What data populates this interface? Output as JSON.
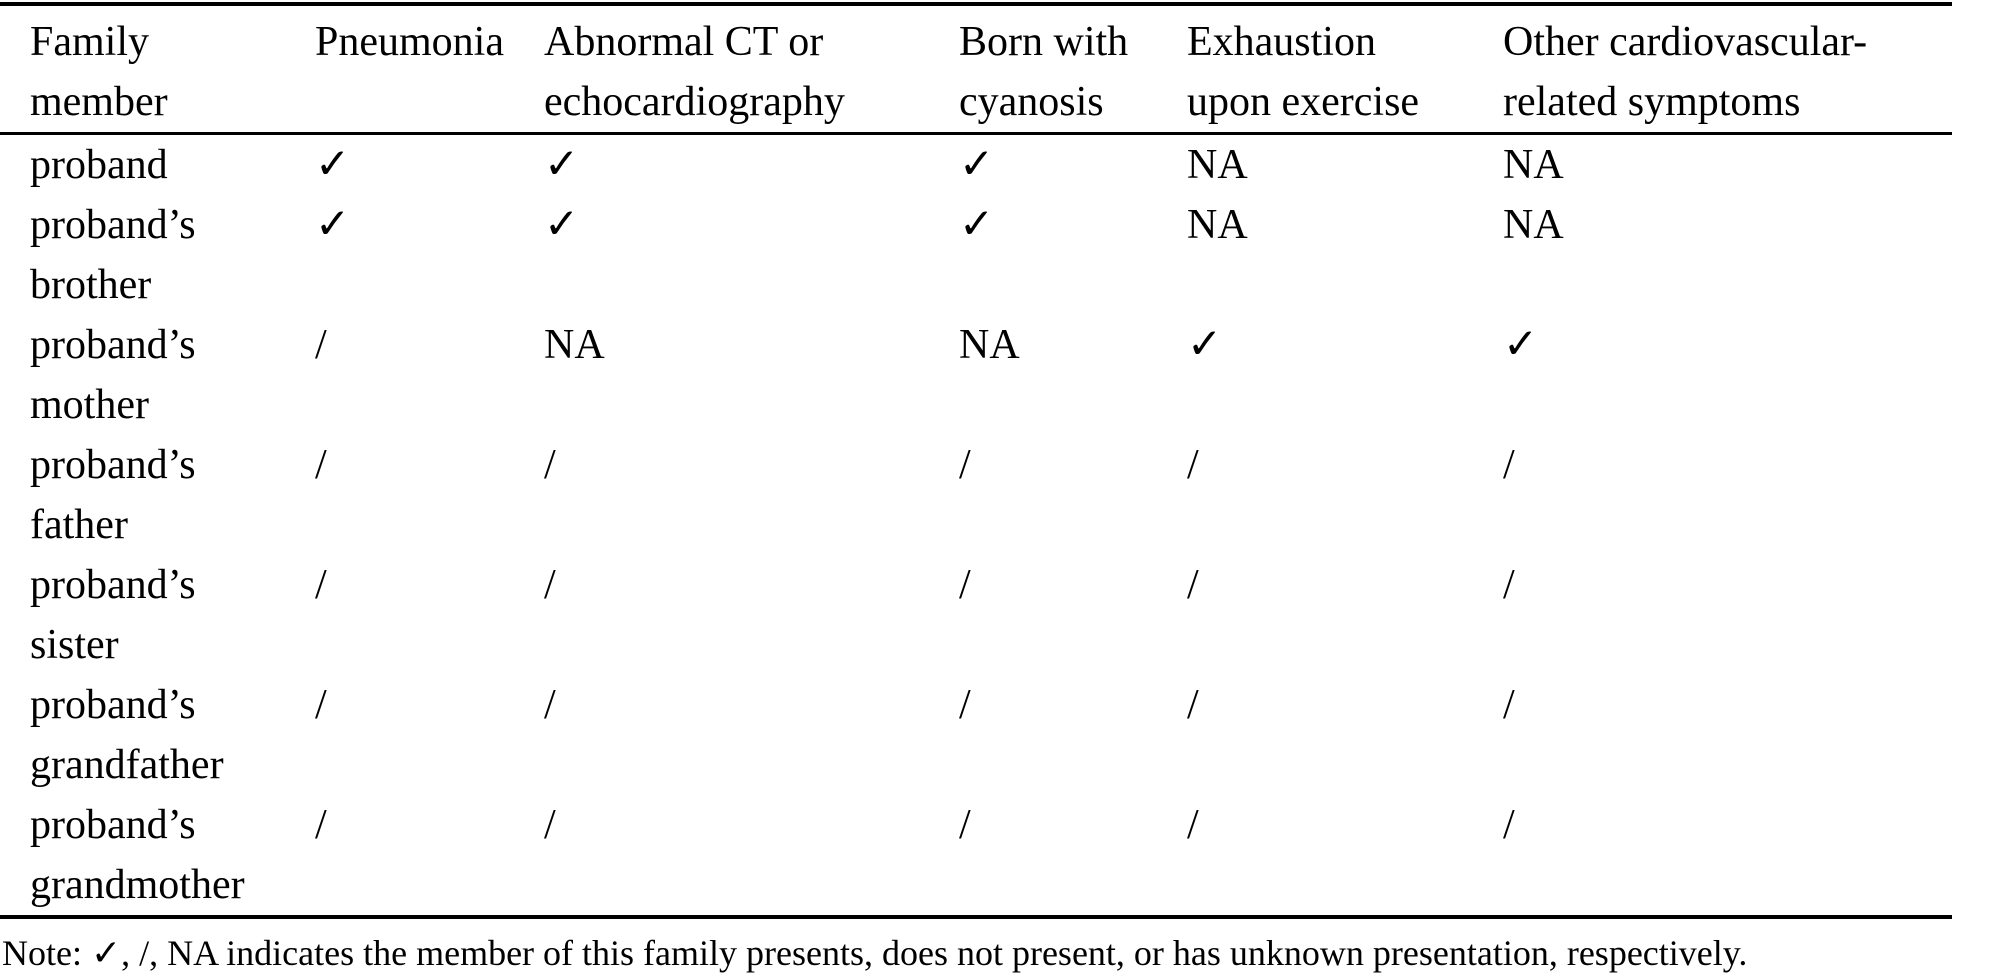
{
  "colors": {
    "text": "#000000",
    "background": "#ffffff",
    "rule": "#000000"
  },
  "table": {
    "columns": [
      "Family member",
      "Pneumonia",
      "Abnormal CT or echocardiography",
      "Born with cyanosis",
      "Exhaustion upon exercise",
      "Other cardiovascular-related symptoms"
    ],
    "rows": [
      {
        "member": "proband",
        "values": [
          "✓",
          "✓",
          "✓",
          "NA",
          "NA"
        ]
      },
      {
        "member": "proband’s brother",
        "values": [
          "✓",
          "✓",
          "✓",
          "NA",
          "NA"
        ]
      },
      {
        "member": "proband’s mother",
        "values": [
          "/",
          "NA",
          "NA",
          "✓",
          "✓"
        ]
      },
      {
        "member": "proband’s father",
        "values": [
          "/",
          "/",
          "/",
          "/",
          "/"
        ]
      },
      {
        "member": "proband’s sister",
        "values": [
          "/",
          "/",
          "/",
          "/",
          "/"
        ]
      },
      {
        "member": "proband’s grandfather",
        "values": [
          "/",
          "/",
          "/",
          "/",
          "/"
        ]
      },
      {
        "member": "proband’s grandmother",
        "values": [
          "/",
          "/",
          "/",
          "/",
          "/"
        ]
      }
    ]
  },
  "legend": {
    "present": "✓",
    "not_present": "/",
    "unknown": "NA"
  },
  "note": "Note: ✓, /, NA indicates the member of this family presents, does not present, or has unknown presentation, respectively."
}
